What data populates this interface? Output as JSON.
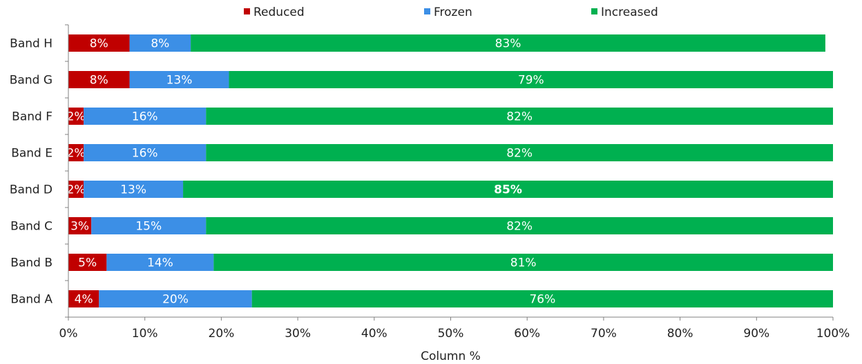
{
  "colors": {
    "Reduced": "#c00000",
    "Frozen": "#3c8fe6",
    "Increased": "#00b050",
    "axis": "#808080"
  },
  "chart_data": {
    "type": "bar",
    "orientation": "horizontal",
    "stacked": true,
    "title": "",
    "xlabel": "Column %",
    "ylabel": "",
    "xlim": [
      0,
      100
    ],
    "x_ticks": [
      "0%",
      "10%",
      "20%",
      "30%",
      "40%",
      "50%",
      "60%",
      "70%",
      "80%",
      "90%",
      "100%"
    ],
    "legend_position": "top",
    "grid": false,
    "categories": [
      "Band A",
      "Band B",
      "Band C",
      "Band D",
      "Band E",
      "Band F",
      "Band G",
      "Band H"
    ],
    "series": [
      {
        "name": "Reduced",
        "values": [
          4,
          5,
          3,
          2,
          2,
          2,
          8,
          8
        ],
        "labels": [
          "4%",
          "5%",
          "3%",
          "2%",
          "2%",
          "2%",
          "8%",
          "8%"
        ]
      },
      {
        "name": "Frozen",
        "values": [
          20,
          14,
          15,
          13,
          16,
          16,
          13,
          8
        ],
        "labels": [
          "20%",
          "14%",
          "15%",
          "13%",
          "16%",
          "16%",
          "13%",
          "8%"
        ]
      },
      {
        "name": "Increased",
        "values": [
          76,
          81,
          82,
          85,
          82,
          82,
          79,
          83
        ],
        "labels": [
          "76%",
          "81%",
          "82%",
          "85%",
          "82%",
          "82%",
          "79%",
          "83%"
        ]
      }
    ],
    "bold_labels": [
      "85%"
    ]
  }
}
